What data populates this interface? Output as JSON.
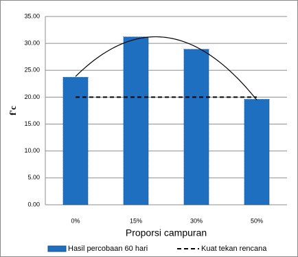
{
  "chart_data": {
    "type": "bar",
    "y_label": "f'c",
    "x_label": "Proporsi campuran",
    "categories": [
      "0%",
      "15%",
      "30%",
      "50%"
    ],
    "series": [
      {
        "name": "Hasil percobaan  60 hari",
        "type": "bar",
        "color": "#1f6fc0",
        "values": [
          23.7,
          31.2,
          28.9,
          19.6
        ]
      },
      {
        "name": "Kuat tekan  rencana",
        "type": "line",
        "color": "#000000",
        "dashed": true,
        "values": [
          20,
          20,
          20,
          20
        ]
      }
    ],
    "trendline": true,
    "ylim": [
      0,
      35
    ],
    "yticks": [
      {
        "value": 0,
        "label": "0.00"
      },
      {
        "value": 5,
        "label": "5.00"
      },
      {
        "value": 10,
        "label": "10.00"
      },
      {
        "value": 15,
        "label": "15.00"
      },
      {
        "value": 20,
        "label": "20.00"
      },
      {
        "value": 25,
        "label": "25.00"
      },
      {
        "value": 30,
        "label": "30.00"
      },
      {
        "value": 35,
        "label": "35.00"
      }
    ],
    "grid": true,
    "legend": "bottom"
  }
}
